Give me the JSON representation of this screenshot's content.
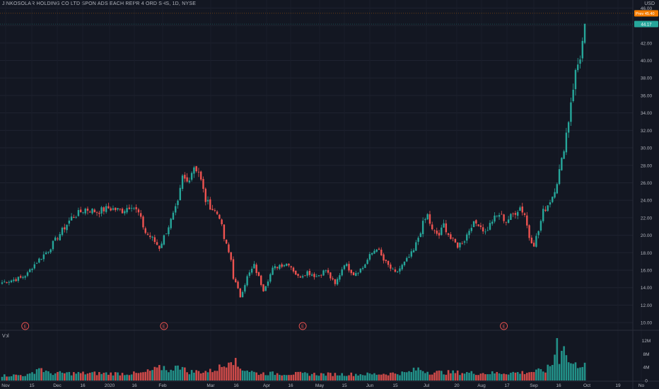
{
  "chart_data": {
    "type": "candlestick",
    "title": "JINKOSOLAR HOLDING CO LTD SPON ADS EACH REPR 4 ORD SHS, 1D, NYSE",
    "currency": "USD",
    "volume_label": "Vol",
    "ylim": [
      9.2,
      46.6
    ],
    "y_ticks": [
      10,
      12,
      14,
      16,
      18,
      20,
      22,
      24,
      26,
      28,
      30,
      32,
      34,
      36,
      38,
      40,
      42,
      44,
      46
    ],
    "y_tick_labels": [
      "10.00",
      "12.00",
      "14.00",
      "16.00",
      "18.00",
      "20.00",
      "22.00",
      "24.00",
      "26.00",
      "28.00",
      "30.00",
      "32.00",
      "34.00",
      "36.00",
      "38.00",
      "40.00",
      "42.00",
      "44.00",
      "46.00"
    ],
    "vol_ticks": [
      0,
      4000000,
      8000000,
      12000000
    ],
    "vol_tick_labels": [
      "0",
      "4M",
      "8M",
      "12M"
    ],
    "x_labels": [
      "Nov",
      "15",
      "Dec",
      "16",
      "2020",
      "16",
      "Feb",
      "Mar",
      "16",
      "Apr",
      "16",
      "May",
      "15",
      "Jun",
      "15",
      "Jul",
      "20",
      "Aug",
      "17",
      "Sep",
      "16",
      "Oct",
      "19",
      "No"
    ],
    "price_anchors": [
      [
        0,
        14.6
      ],
      [
        8,
        15.1
      ],
      [
        11,
        15.6
      ],
      [
        13,
        16.4
      ],
      [
        17,
        17.5
      ],
      [
        20,
        18.3
      ],
      [
        24,
        19.8
      ],
      [
        30,
        22.0
      ],
      [
        36,
        23.0
      ],
      [
        41,
        22.7
      ],
      [
        46,
        23.1
      ],
      [
        52,
        22.8
      ],
      [
        56,
        23.5
      ],
      [
        59,
        22.5
      ],
      [
        62,
        20.3
      ],
      [
        65,
        19.6
      ],
      [
        68,
        18.6
      ],
      [
        74,
        22.3
      ],
      [
        76,
        23.6
      ],
      [
        78,
        26.6
      ],
      [
        80,
        26.1
      ],
      [
        83,
        27.9
      ],
      [
        85,
        27.3
      ],
      [
        88,
        24.0
      ],
      [
        91,
        23.0
      ],
      [
        94,
        22.2
      ],
      [
        96,
        19.6
      ],
      [
        99,
        17.2
      ],
      [
        100,
        15.2
      ],
      [
        103,
        13.0
      ],
      [
        106,
        15.2
      ],
      [
        109,
        16.5
      ],
      [
        113,
        13.8
      ],
      [
        117,
        16.1
      ],
      [
        120,
        16.6
      ],
      [
        124,
        16.8
      ],
      [
        128,
        15.2
      ],
      [
        132,
        15.8
      ],
      [
        136,
        15.3
      ],
      [
        140,
        16.0
      ],
      [
        144,
        14.3
      ],
      [
        148,
        16.8
      ],
      [
        152,
        15.6
      ],
      [
        156,
        16.3
      ],
      [
        159,
        17.6
      ],
      [
        162,
        18.6
      ],
      [
        165,
        17.1
      ],
      [
        170,
        15.6
      ],
      [
        174,
        16.8
      ],
      [
        178,
        18.2
      ],
      [
        182,
        21.3
      ],
      [
        184,
        22.3
      ],
      [
        186,
        20.5
      ],
      [
        189,
        20.0
      ],
      [
        191,
        21.2
      ],
      [
        194,
        19.6
      ],
      [
        197,
        18.8
      ],
      [
        200,
        19.5
      ],
      [
        203,
        21.2
      ],
      [
        206,
        21.4
      ],
      [
        209,
        20.3
      ],
      [
        212,
        21.7
      ],
      [
        215,
        22.4
      ],
      [
        218,
        21.6
      ],
      [
        221,
        22.4
      ],
      [
        224,
        23.2
      ],
      [
        226,
        22.4
      ],
      [
        228,
        19.8
      ],
      [
        230,
        19.0
      ],
      [
        232,
        20.5
      ],
      [
        234,
        22.7
      ],
      [
        236,
        23.5
      ],
      [
        238,
        24.5
      ],
      [
        240,
        26.2
      ],
      [
        242,
        28.5
      ],
      [
        244,
        31.7
      ],
      [
        245,
        33.2
      ],
      [
        246,
        35.4
      ],
      [
        248,
        38.6
      ],
      [
        250,
        40.5
      ],
      [
        252,
        43.6
      ]
    ],
    "vol_anchors": [
      [
        0,
        1.5
      ],
      [
        12,
        1.7
      ],
      [
        16,
        4.0
      ],
      [
        20,
        2.2
      ],
      [
        60,
        2.1
      ],
      [
        70,
        4.0
      ],
      [
        74,
        2.5
      ],
      [
        75,
        5.8
      ],
      [
        77,
        4.4
      ],
      [
        80,
        2.6
      ],
      [
        90,
        2.8
      ],
      [
        96,
        4.5
      ],
      [
        99,
        7.6
      ],
      [
        102,
        4.1
      ],
      [
        110,
        2.2
      ],
      [
        140,
        1.9
      ],
      [
        160,
        1.9
      ],
      [
        175,
        2.3
      ],
      [
        180,
        3.5
      ],
      [
        185,
        2.5
      ],
      [
        195,
        2.4
      ],
      [
        210,
        2.2
      ],
      [
        225,
        2.4
      ],
      [
        235,
        3.0
      ],
      [
        238,
        5.0
      ],
      [
        240,
        11.9
      ],
      [
        241,
        6.6
      ],
      [
        243,
        13.0
      ],
      [
        244,
        6.9
      ],
      [
        246,
        5.1
      ],
      [
        248,
        4.6
      ],
      [
        250,
        4.9
      ],
      [
        252,
        5.6
      ]
    ],
    "last_close": 44.17,
    "last_close_label": "44.17",
    "prev_close_label": "45.40",
    "prev_close_tag": "Prev",
    "last_price_color": "#26a69a",
    "prev_tag_color": "#f57c00",
    "up_color": "#26a69a",
    "down_color": "#ef5350",
    "earnings_marker_text": "E",
    "earnings_days": [
      10,
      70,
      130,
      217
    ]
  }
}
